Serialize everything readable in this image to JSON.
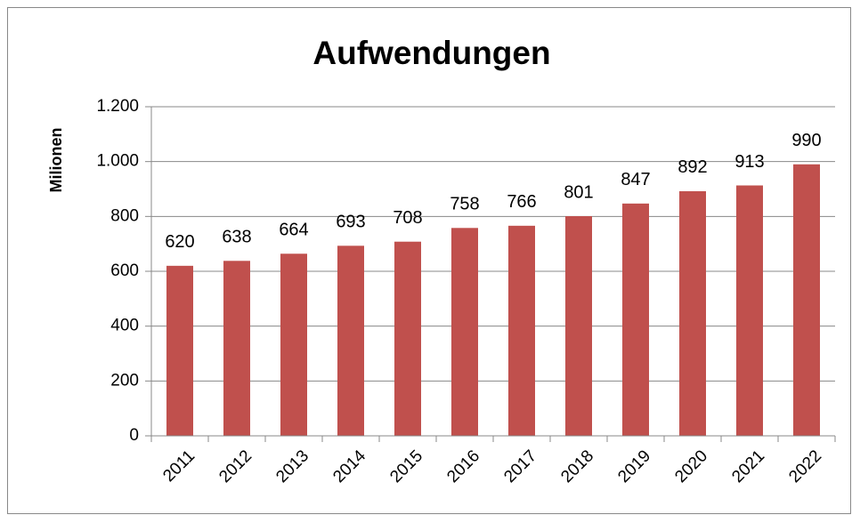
{
  "chart_data": {
    "type": "bar",
    "title": "Aufwendungen",
    "y_label": "Milionen",
    "categories": [
      "2011",
      "2012",
      "2013",
      "2014",
      "2015",
      "2016",
      "2017",
      "2018",
      "2019",
      "2020",
      "2021",
      "2022"
    ],
    "values": [
      620,
      638,
      664,
      693,
      708,
      758,
      766,
      801,
      847,
      892,
      913,
      990
    ],
    "color": "#c0504d",
    "ylim": [
      0,
      1200
    ],
    "yticks": [
      0,
      200,
      400,
      600,
      800,
      {
        "value": 1000,
        "label": "1.000"
      },
      {
        "value": 1200,
        "label": "1.200"
      }
    ],
    "grid": true
  }
}
